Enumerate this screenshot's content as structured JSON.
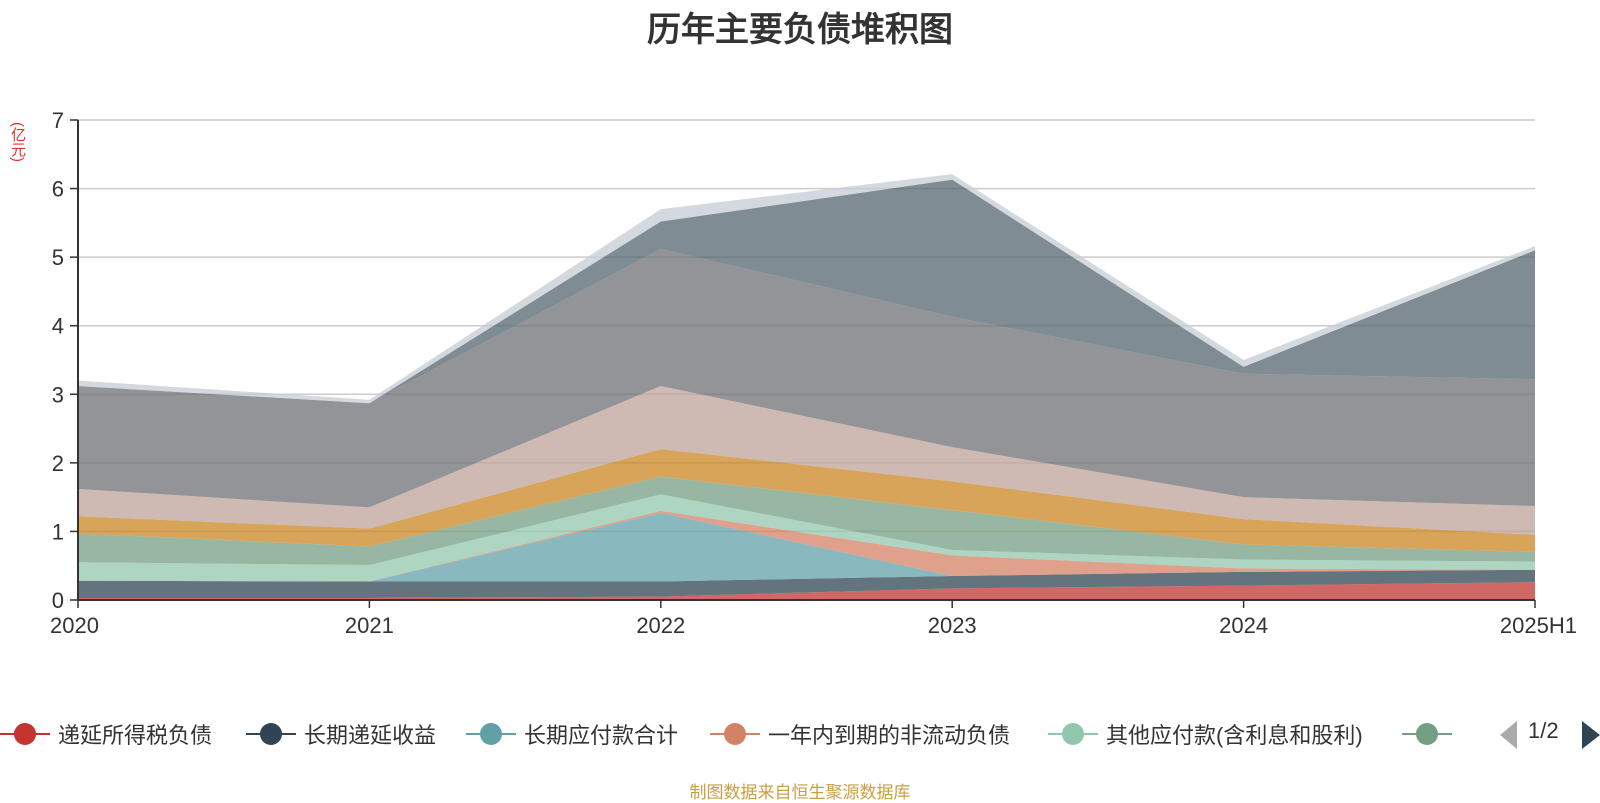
{
  "chart_data": {
    "type": "area",
    "stacked": true,
    "title": "历年主要负债堆积图",
    "ylabel": "(亿元)",
    "xlabel": "",
    "categories": [
      "2020",
      "2021",
      "2022",
      "2023",
      "2024",
      "2025H1"
    ],
    "ylim": [
      0,
      7
    ],
    "yticks": [
      "0",
      "1",
      "2",
      "3",
      "4",
      "5",
      "6",
      "7"
    ],
    "grid": true,
    "series": [
      {
        "name": "递延所得税负债",
        "color": "#c23531",
        "values": [
          0.03,
          0.03,
          0.05,
          0.17,
          0.21,
          0.26
        ]
      },
      {
        "name": "长期递延收益",
        "color": "#2f4554",
        "values": [
          0.25,
          0.24,
          0.22,
          0.18,
          0.2,
          0.18
        ]
      },
      {
        "name": "长期应付款合计",
        "color": "#61a0a8",
        "values": [
          0.0,
          0.0,
          1.0,
          0.0,
          0.0,
          0.0
        ]
      },
      {
        "name": "一年内到期的非流动负债",
        "color": "#d48265",
        "values": [
          0.0,
          0.0,
          0.03,
          0.3,
          0.05,
          0.0
        ]
      },
      {
        "name": "其他应付款(含利息和股利)",
        "color": "#91c7ae",
        "values": [
          0.27,
          0.24,
          0.24,
          0.08,
          0.13,
          0.12
        ]
      },
      {
        "name": "",
        "color": "#749f83",
        "values": [
          0.42,
          0.27,
          0.26,
          0.58,
          0.22,
          0.14
        ]
      },
      {
        "name": "",
        "color": "#ca8622",
        "values": [
          0.25,
          0.26,
          0.4,
          0.42,
          0.37,
          0.25
        ]
      },
      {
        "name": "",
        "color": "#bda29a",
        "values": [
          0.4,
          0.31,
          0.92,
          0.5,
          0.32,
          0.42
        ]
      },
      {
        "name": "",
        "color": "#6e7074",
        "values": [
          1.5,
          1.52,
          2.0,
          1.9,
          1.8,
          1.85
        ]
      },
      {
        "name": "",
        "color": "#546570",
        "values": [
          0.0,
          0.0,
          0.4,
          2.0,
          0.1,
          1.88
        ]
      },
      {
        "name": "",
        "color": "#c4ccd3",
        "values": [
          0.08,
          0.05,
          0.18,
          0.08,
          0.1,
          0.06
        ]
      }
    ]
  },
  "legend": {
    "page_text": "1/2"
  },
  "source_note": "制图数据来自恒生聚源数据库"
}
